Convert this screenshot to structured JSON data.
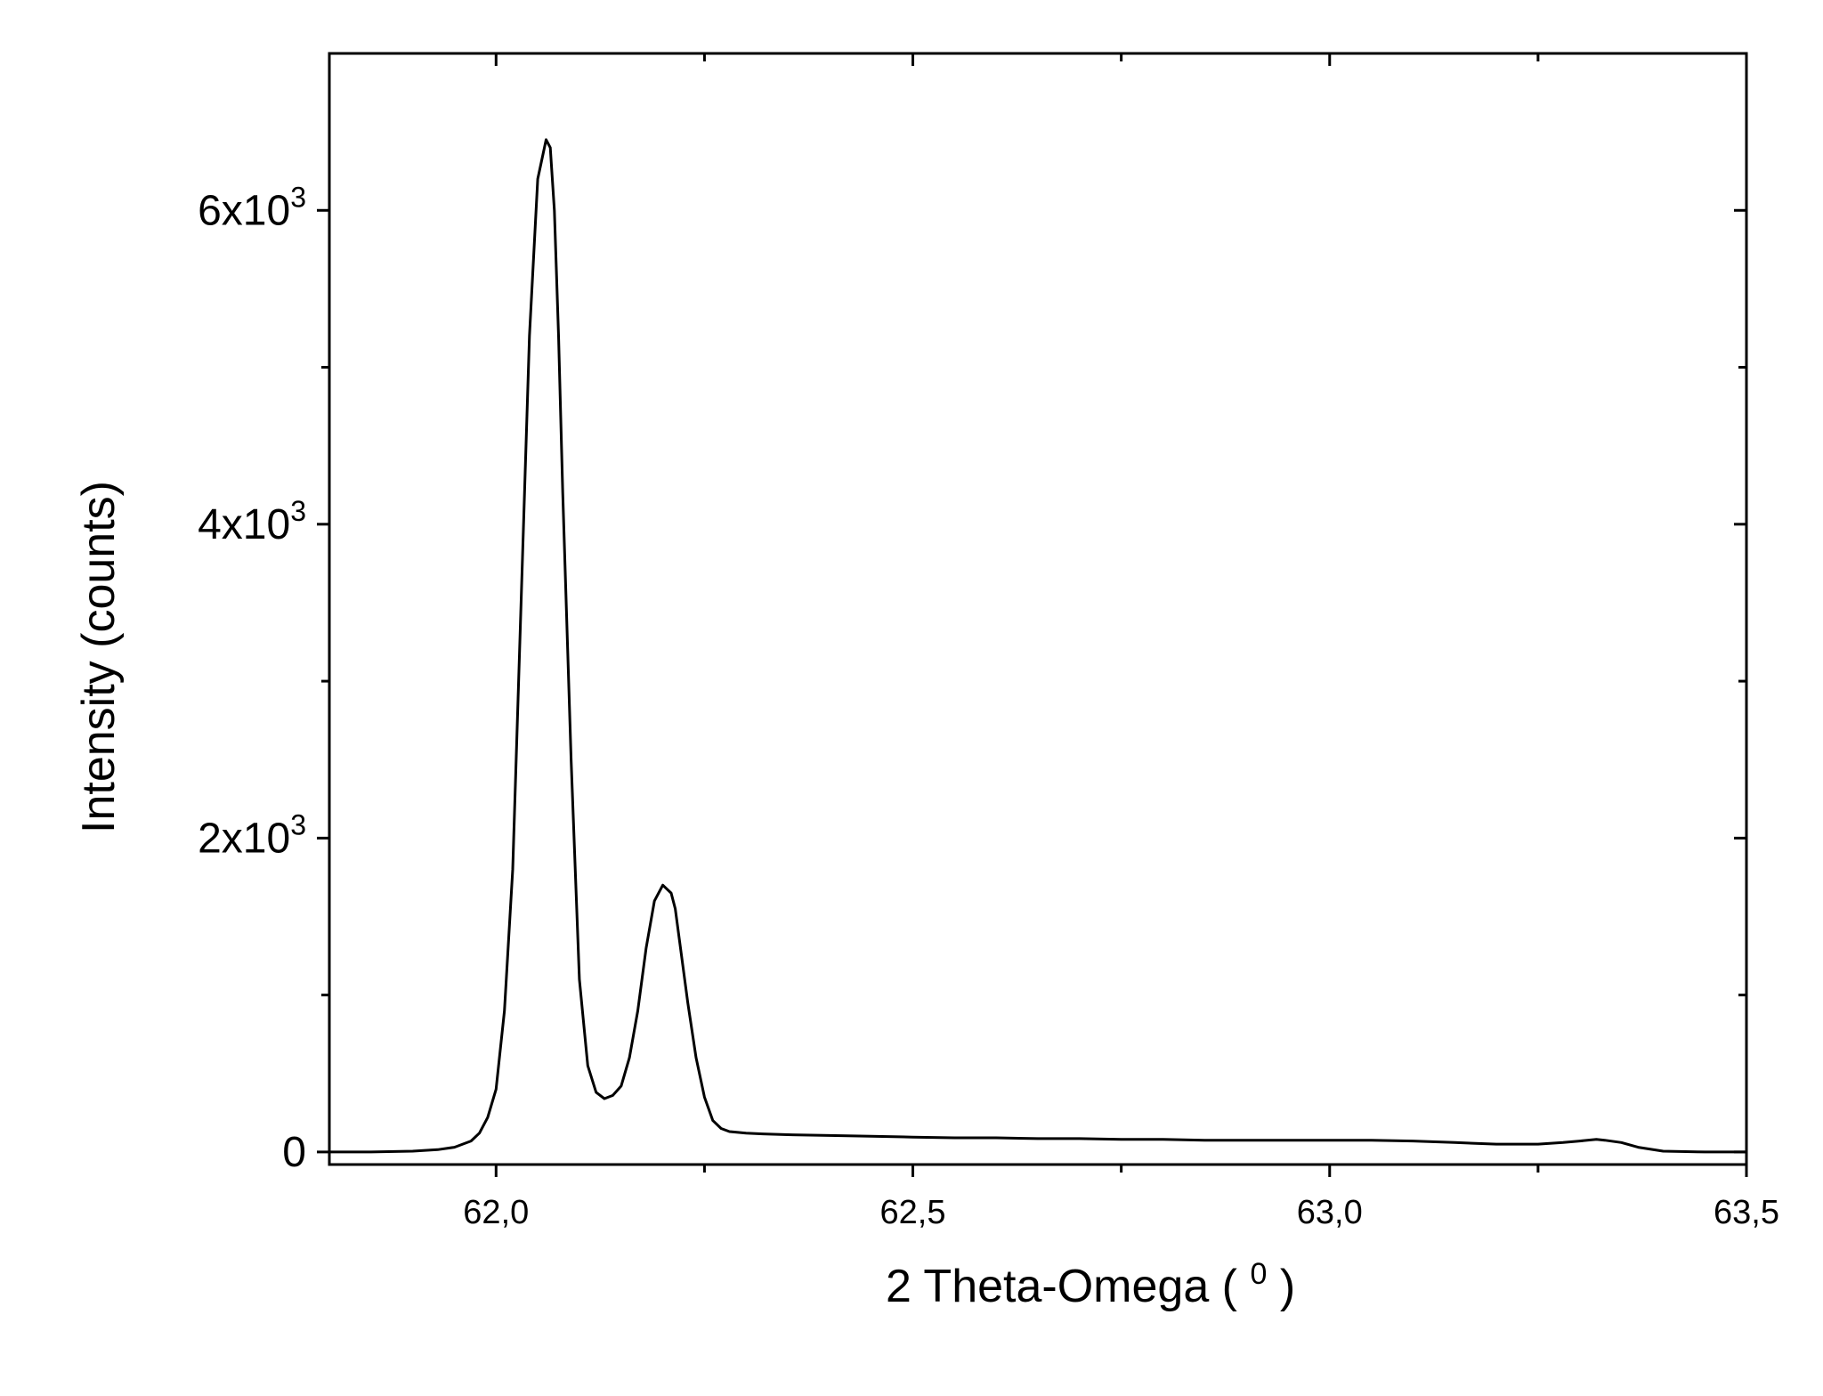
{
  "chart_data": {
    "type": "line",
    "title": "",
    "xlabel": "2 Theta-Omega (",
    "xlabel_superscript": "0",
    "xlabel_suffix": ")",
    "ylabel": "Intensity (counts)",
    "xlim": [
      61.8,
      63.5
    ],
    "ylim": [
      -80,
      7000
    ],
    "x_ticks": [
      {
        "value": 62.0,
        "label": "62,0"
      },
      {
        "value": 62.5,
        "label": "62,5"
      },
      {
        "value": 63.0,
        "label": "63,0"
      },
      {
        "value": 63.5,
        "label": "63,5"
      }
    ],
    "x_minor_ticks": [
      61.75,
      62.25,
      62.75,
      63.25
    ],
    "y_ticks": [
      {
        "value": 0,
        "mantissa": "0",
        "exponent": ""
      },
      {
        "value": 2000,
        "mantissa": "2x10",
        "exponent": "3"
      },
      {
        "value": 4000,
        "mantissa": "4x10",
        "exponent": "3"
      },
      {
        "value": 6000,
        "mantissa": "6x10",
        "exponent": "3"
      }
    ],
    "y_minor_ticks": [
      1000,
      3000,
      5000
    ],
    "grid": false,
    "line_color": "#000000",
    "series": [
      {
        "x": [
          61.8,
          61.85,
          61.9,
          61.93,
          61.95,
          61.97,
          61.98,
          61.99,
          62.0,
          62.01,
          62.02,
          62.03,
          62.04,
          62.05,
          62.06,
          62.065,
          62.07,
          62.075,
          62.08,
          62.09,
          62.1,
          62.11,
          62.12,
          62.13,
          62.14,
          62.15,
          62.16,
          62.17,
          62.18,
          62.19,
          62.2,
          62.21,
          62.215,
          62.22,
          62.23,
          62.24,
          62.25,
          62.26,
          62.27,
          62.28,
          62.3,
          62.32,
          62.35,
          62.4,
          62.45,
          62.5,
          62.55,
          62.6,
          62.65,
          62.7,
          62.75,
          62.8,
          62.85,
          62.9,
          62.95,
          63.0,
          63.05,
          63.1,
          63.15,
          63.2,
          63.25,
          63.28,
          63.3,
          63.32,
          63.33,
          63.35,
          63.37,
          63.4,
          63.45,
          63.5
        ],
        "y": [
          0,
          0,
          5,
          15,
          30,
          70,
          120,
          220,
          400,
          900,
          1800,
          3500,
          5200,
          6200,
          6450,
          6400,
          6000,
          5200,
          4200,
          2500,
          1100,
          550,
          380,
          340,
          360,
          420,
          600,
          900,
          1300,
          1600,
          1700,
          1650,
          1550,
          1350,
          950,
          600,
          350,
          200,
          150,
          130,
          120,
          115,
          110,
          105,
          100,
          95,
          90,
          90,
          85,
          85,
          80,
          80,
          75,
          75,
          75,
          75,
          75,
          70,
          60,
          50,
          50,
          60,
          70,
          80,
          75,
          60,
          30,
          5,
          0,
          0
        ]
      }
    ]
  }
}
